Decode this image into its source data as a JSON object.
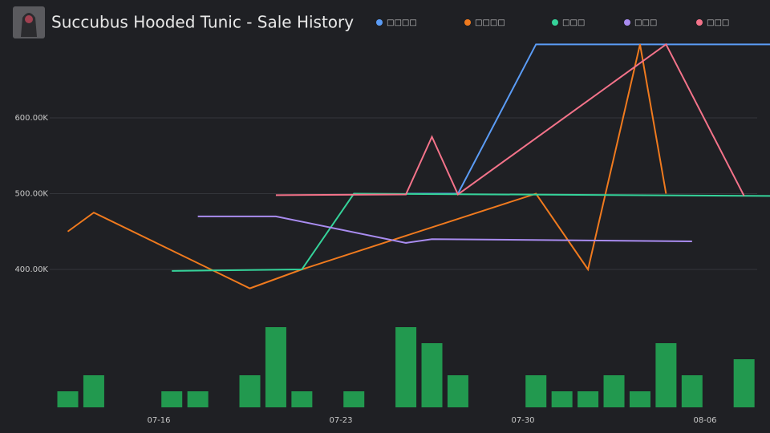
{
  "chart_data": {
    "type": "line",
    "title": "Succubus Hooded Tunic - Sale History",
    "ylim": [
      340000,
      700000
    ],
    "yticks": [
      {
        "value": 400000,
        "label": "400.00K"
      },
      {
        "value": 500000,
        "label": "500.00K"
      },
      {
        "value": 600000,
        "label": "600.00K"
      }
    ],
    "xticks": [
      "07-16",
      "07-23",
      "07-30",
      "08-06"
    ],
    "grid": true,
    "series": [
      {
        "name": "□□□□",
        "color": "#5b9cf6",
        "x": [
          "07-25",
          "07-27",
          "07-30",
          "08-08"
        ],
        "values": [
          500000,
          500000,
          697000,
          697000
        ]
      },
      {
        "name": "□□□□",
        "color": "#f07a1e",
        "x": [
          "07-12",
          "07-13",
          "07-19",
          "07-21",
          "07-30",
          "08-01",
          "08-03",
          "08-04"
        ],
        "values": [
          450000,
          475000,
          375000,
          400000,
          500000,
          400000,
          697000,
          500000
        ]
      },
      {
        "name": "□□□",
        "color": "#35d39a",
        "x": [
          "07-16",
          "07-21",
          "07-23",
          "08-08"
        ],
        "values": [
          398000,
          400000,
          500000,
          497000
        ]
      },
      {
        "name": "□□□",
        "color": "#a98cf0",
        "x": [
          "07-17",
          "07-20",
          "07-25",
          "07-26",
          "08-05"
        ],
        "values": [
          470000,
          470000,
          435000,
          440000,
          437000
        ]
      },
      {
        "name": "□□□",
        "color": "#f4738a",
        "x": [
          "07-20",
          "07-25",
          "07-26",
          "07-27",
          "08-04",
          "08-07"
        ],
        "values": [
          498000,
          499000,
          575000,
          499000,
          697000,
          497000
        ]
      }
    ],
    "volume": {
      "color": "#22994f",
      "x": [
        "07-12",
        "07-13",
        "07-16",
        "07-17",
        "07-19",
        "07-20",
        "07-21",
        "07-23",
        "07-25",
        "07-26",
        "07-27",
        "07-30",
        "07-31",
        "08-01",
        "08-02",
        "08-03",
        "08-04",
        "08-05",
        "08-07"
      ],
      "values": [
        1,
        2,
        1,
        1,
        2,
        5,
        1,
        1,
        5,
        4,
        2,
        2,
        1,
        1,
        2,
        1,
        4,
        2,
        3
      ]
    }
  }
}
